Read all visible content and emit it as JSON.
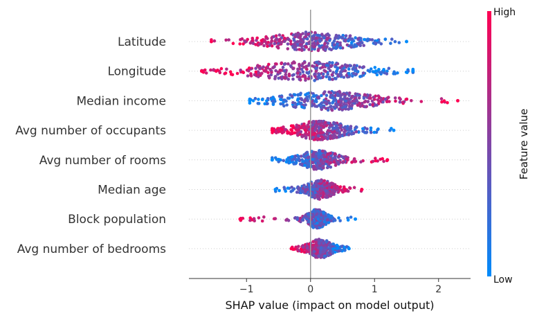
{
  "chart_data": {
    "type": "scatter",
    "subtype": "shap-beeswarm",
    "xlabel": "SHAP value (impact on model output)",
    "xlim": [
      -1.9,
      2.5
    ],
    "xticks": [
      {
        "value": -1,
        "label": "−1"
      },
      {
        "value": 0,
        "label": "0"
      },
      {
        "value": 1,
        "label": "1"
      },
      {
        "value": 2,
        "label": "2"
      }
    ],
    "features": [
      {
        "name": "Latitude",
        "min": -1.55,
        "max": 1.5,
        "core": [
          -0.9,
          0.95
        ],
        "high_side": "left"
      },
      {
        "name": "Longitude",
        "min": -1.7,
        "max": 1.6,
        "core": [
          -1.25,
          1.15
        ],
        "high_side": "left"
      },
      {
        "name": "Median income",
        "min": -0.95,
        "max": 2.3,
        "core": [
          -0.7,
          1.3
        ],
        "high_side": "right"
      },
      {
        "name": "Avg number of occupants",
        "min": -0.6,
        "max": 1.3,
        "core": [
          -0.4,
          0.7
        ],
        "high_side": "left"
      },
      {
        "name": "Avg number of rooms",
        "min": -0.6,
        "max": 1.2,
        "core": [
          -0.3,
          0.55
        ],
        "high_side": "right"
      },
      {
        "name": "Median age",
        "min": -0.55,
        "max": 0.8,
        "core": [
          -0.15,
          0.45
        ],
        "high_side": "right"
      },
      {
        "name": "Block population",
        "min": -1.1,
        "max": 0.7,
        "core": [
          -0.1,
          0.3
        ],
        "high_side": "left"
      },
      {
        "name": "Avg number of bedrooms",
        "min": -0.3,
        "max": 0.6,
        "core": [
          -0.1,
          0.4
        ],
        "high_side": "left"
      }
    ],
    "colorbar": {
      "title": "Feature value",
      "high_label": "High",
      "low_label": "Low",
      "high_color": "#ff0052",
      "low_color": "#008bfb"
    },
    "zero_line": true,
    "grid": false
  }
}
